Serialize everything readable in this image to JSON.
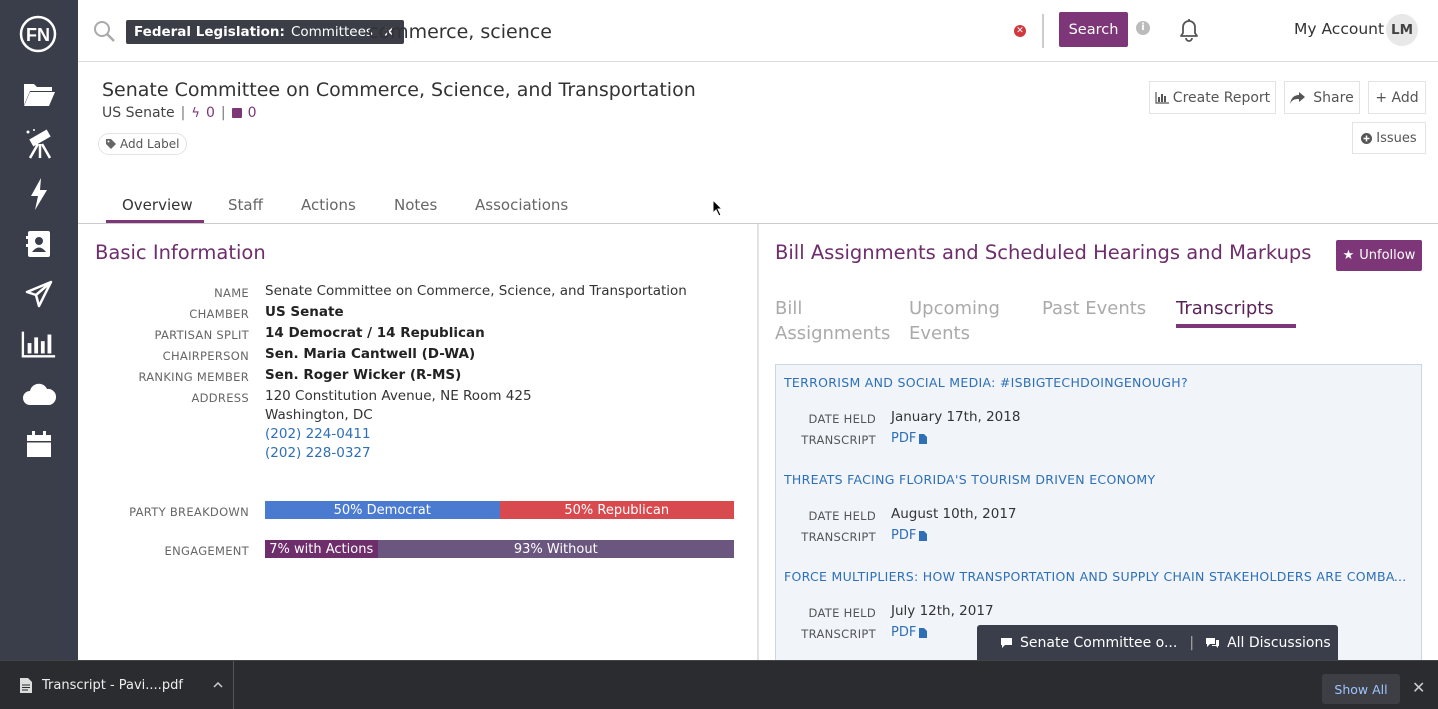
{
  "sidebar": {
    "logo_text": "FN",
    "items": [
      {
        "icon": "folder-icon"
      },
      {
        "icon": "telescope-icon"
      },
      {
        "icon": "lightning-icon"
      },
      {
        "icon": "contact-card-icon"
      },
      {
        "icon": "paper-plane-icon"
      },
      {
        "icon": "bar-chart-icon"
      },
      {
        "icon": "cloud-icon"
      },
      {
        "icon": "calendar-icon"
      }
    ]
  },
  "topbar": {
    "filter_chip": {
      "category": "Federal Legislation:",
      "value": "Committees",
      "remove": "✕"
    },
    "search_query": "commerce, science",
    "search_button": "Search",
    "info": "i",
    "account_label": "My Account",
    "avatar_initials": "LM"
  },
  "header": {
    "title": "Senate Committee on Commerce, Science, and Transportation",
    "chamber": "US Senate",
    "actions_count": "0",
    "notes_count": "0",
    "add_label": "Add Label",
    "create_report": "Create Report",
    "share": "Share",
    "add": "+ Add",
    "issues": "Issues"
  },
  "tabs": [
    "Overview",
    "Staff",
    "Actions",
    "Notes",
    "Associations"
  ],
  "basic_info": {
    "title": "Basic Information",
    "fields": {
      "name": {
        "label": "NAME",
        "value": "Senate Committee on Commerce, Science, and Transportation"
      },
      "chamber": {
        "label": "CHAMBER",
        "value": "US Senate"
      },
      "partisan": {
        "label": "PARTISAN SPLIT",
        "value": "14 Democrat / 14 Republican"
      },
      "chair": {
        "label": "CHAIRPERSON",
        "value": "Sen. Maria Cantwell (D-WA)"
      },
      "ranking": {
        "label": "RANKING MEMBER",
        "value": "Sen. Roger Wicker (R-MS)"
      },
      "address": {
        "label": "ADDRESS",
        "line1": "120 Constitution Avenue, NE Room 425",
        "line2": "Washington, DC",
        "phone1": "(202) 224-0411",
        "phone2": "(202) 228-0327"
      }
    },
    "party_breakdown": {
      "label": "PARTY BREAKDOWN",
      "democrat": "50% Democrat",
      "republican": "50% Republican",
      "democrat_pct": 50
    },
    "engagement": {
      "label": "ENGAGEMENT",
      "with_actions": "7% with Actions",
      "without": "93% Without",
      "with_actions_pct": 7
    }
  },
  "right_panel": {
    "title": "Bill Assignments and Scheduled Hearings and Markups",
    "unfollow": "Unfollow",
    "subtabs": {
      "bill_a": "Bill",
      "bill_b": "Assignments",
      "upcoming_a": "Upcoming",
      "upcoming_b": "Events",
      "past": "Past Events",
      "transcripts": "Transcripts"
    },
    "transcripts": [
      {
        "title": "TERRORISM AND SOCIAL MEDIA: #ISBIGTECHDOINGENOUGH?",
        "date_label": "DATE HELD",
        "date": "January 17th, 2018",
        "transcript_label": "TRANSCRIPT",
        "pdf": "PDF"
      },
      {
        "title": "THREATS FACING FLORIDA'S TOURISM DRIVEN ECONOMY",
        "date_label": "DATE HELD",
        "date": "August 10th, 2017",
        "transcript_label": "TRANSCRIPT",
        "pdf": "PDF"
      },
      {
        "title": "FORCE MULTIPLIERS: HOW TRANSPORTATION AND SUPPLY CHAIN STAKEHOLDERS ARE COMBAT...",
        "date_label": "DATE HELD",
        "date": "July 12th, 2017",
        "transcript_label": "TRANSCRIPT",
        "pdf": "PDF"
      }
    ]
  },
  "discussion_bar": {
    "committee": "Senate Committee o...",
    "separator": "|",
    "all": "All Discussions"
  },
  "download_bar": {
    "file": "Transcript - Pavi....pdf",
    "show_all": "Show All",
    "close": "✕"
  },
  "colors": {
    "brand": "#7d3678",
    "democrat": "#4a7bd0",
    "republican": "#d94a4f",
    "engagement_with": "#6e2d6b",
    "engagement_without": "#6b567f",
    "sidebar": "#3a3d4a"
  }
}
